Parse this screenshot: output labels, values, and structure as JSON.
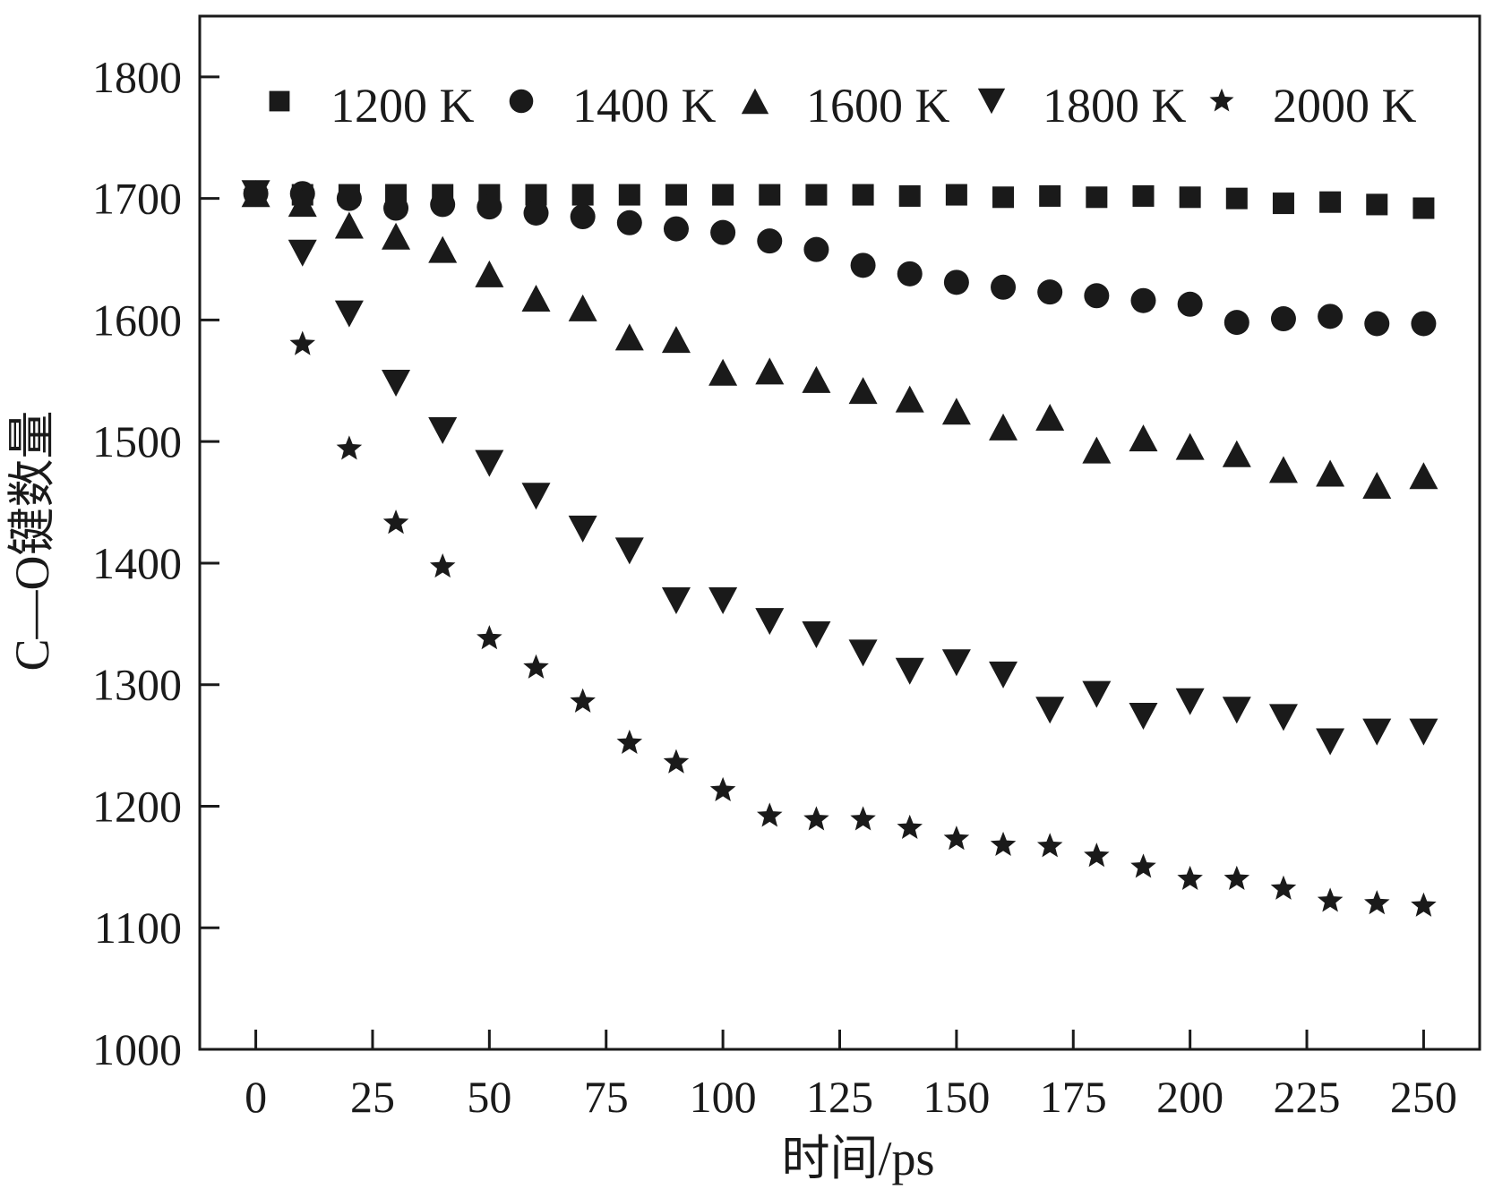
{
  "chart_data": {
    "type": "scatter",
    "title": "",
    "xlabel": "时间/ps",
    "ylabel": "C—O键数量",
    "xlim": [
      -12,
      262
    ],
    "ylim": [
      1000,
      1850
    ],
    "xticks": [
      0,
      25,
      50,
      75,
      100,
      125,
      150,
      175,
      200,
      225,
      250
    ],
    "yticks": [
      1000,
      1100,
      1200,
      1300,
      1400,
      1500,
      1600,
      1700,
      1800
    ],
    "legend_position": "top",
    "grid": false,
    "x": [
      0,
      10,
      20,
      30,
      40,
      50,
      60,
      70,
      80,
      90,
      100,
      110,
      120,
      130,
      140,
      150,
      160,
      170,
      180,
      190,
      200,
      210,
      220,
      230,
      240,
      250
    ],
    "series": [
      {
        "name": "1200 K",
        "marker": "square",
        "values": [
          1704,
          1703,
          1703,
          1703,
          1703,
          1703,
          1703,
          1703,
          1703,
          1703,
          1703,
          1703,
          1703,
          1703,
          1702,
          1703,
          1701,
          1702,
          1701,
          1702,
          1701,
          1700,
          1696,
          1697,
          1695,
          1692
        ]
      },
      {
        "name": "1400 K",
        "marker": "circle",
        "values": [
          1704,
          1704,
          1700,
          1692,
          1695,
          1693,
          1688,
          1685,
          1680,
          1675,
          1672,
          1665,
          1658,
          1645,
          1638,
          1631,
          1627,
          1623,
          1620,
          1616,
          1613,
          1598,
          1601,
          1603,
          1597,
          1597
        ]
      },
      {
        "name": "1600 K",
        "marker": "triangle-up",
        "values": [
          1704,
          1696,
          1678,
          1669,
          1658,
          1638,
          1618,
          1610,
          1586,
          1584,
          1557,
          1558,
          1551,
          1542,
          1535,
          1525,
          1512,
          1520,
          1493,
          1503,
          1496,
          1490,
          1477,
          1474,
          1464,
          1472
        ]
      },
      {
        "name": "1800 K",
        "marker": "triangle-down",
        "values": [
          1704,
          1655,
          1605,
          1548,
          1509,
          1482,
          1455,
          1428,
          1410,
          1369,
          1369,
          1352,
          1341,
          1326,
          1311,
          1318,
          1308,
          1279,
          1292,
          1274,
          1286,
          1279,
          1273,
          1253,
          1261,
          1261
        ]
      },
      {
        "name": "2000 K",
        "marker": "star",
        "values": [
          1704,
          1580,
          1494,
          1433,
          1397,
          1338,
          1314,
          1286,
          1252,
          1236,
          1213,
          1192,
          1189,
          1189,
          1182,
          1173,
          1168,
          1167,
          1159,
          1150,
          1140,
          1140,
          1132,
          1122,
          1120,
          1118
        ]
      }
    ]
  },
  "colors": {
    "ink": "#1a1a1a",
    "background": "#ffffff"
  }
}
